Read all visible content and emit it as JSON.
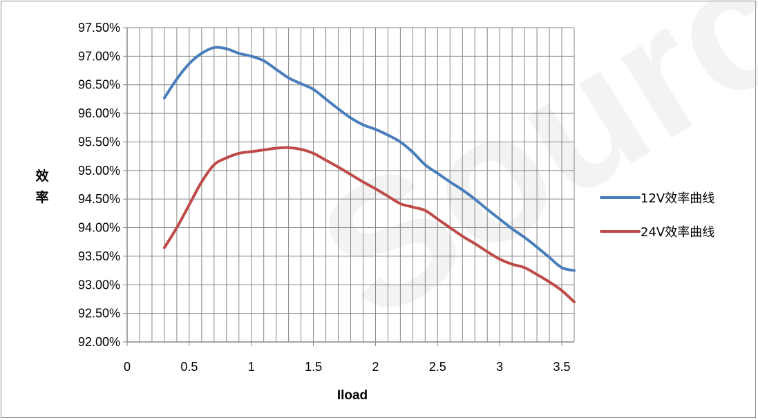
{
  "chart_data": {
    "type": "line",
    "title": "",
    "xlabel": "Iload",
    "ylabel": "效率",
    "xlim": [
      0,
      3.6
    ],
    "ylim": [
      92.0,
      97.5
    ],
    "x_ticks": [
      "0",
      "0.5",
      "1",
      "1.5",
      "2",
      "2.5",
      "3",
      "3.5"
    ],
    "y_ticks": [
      "92.00%",
      "92.50%",
      "93.00%",
      "93.50%",
      "94.00%",
      "94.50%",
      "95.00%",
      "95.50%",
      "96.00%",
      "96.50%",
      "97.00%",
      "97.50%"
    ],
    "grid": true,
    "legend_position": "right",
    "series": [
      {
        "name": "12V效率曲线",
        "color": "#4a7ebb",
        "x": [
          0.3,
          0.4,
          0.5,
          0.6,
          0.7,
          0.8,
          0.9,
          1.0,
          1.1,
          1.2,
          1.3,
          1.4,
          1.5,
          1.6,
          1.7,
          1.8,
          1.9,
          2.0,
          2.1,
          2.2,
          2.3,
          2.4,
          2.5,
          2.6,
          2.7,
          2.8,
          2.9,
          3.0,
          3.1,
          3.2,
          3.3,
          3.4,
          3.5,
          3.6
        ],
        "values": [
          96.27,
          96.6,
          96.87,
          97.05,
          97.15,
          97.13,
          97.05,
          97.0,
          96.92,
          96.77,
          96.62,
          96.52,
          96.42,
          96.25,
          96.08,
          95.92,
          95.8,
          95.72,
          95.62,
          95.5,
          95.32,
          95.1,
          94.95,
          94.8,
          94.66,
          94.5,
          94.32,
          94.15,
          93.98,
          93.83,
          93.66,
          93.48,
          93.3,
          93.25
        ]
      },
      {
        "name": "24V效率曲线",
        "color": "#be4b48",
        "x": [
          0.3,
          0.4,
          0.5,
          0.6,
          0.7,
          0.8,
          0.9,
          1.0,
          1.1,
          1.2,
          1.3,
          1.4,
          1.5,
          1.6,
          1.7,
          1.8,
          1.9,
          2.0,
          2.1,
          2.2,
          2.3,
          2.4,
          2.5,
          2.6,
          2.7,
          2.8,
          2.9,
          3.0,
          3.1,
          3.2,
          3.3,
          3.4,
          3.5,
          3.6
        ],
        "values": [
          93.65,
          94.0,
          94.4,
          94.8,
          95.1,
          95.22,
          95.3,
          95.33,
          95.36,
          95.39,
          95.4,
          95.37,
          95.3,
          95.18,
          95.06,
          94.93,
          94.8,
          94.68,
          94.55,
          94.42,
          94.36,
          94.3,
          94.15,
          94.0,
          93.85,
          93.72,
          93.58,
          93.45,
          93.36,
          93.3,
          93.18,
          93.05,
          92.9,
          92.7
        ]
      }
    ]
  },
  "colors": {
    "grid": "#868686",
    "axis": "#868686",
    "frame": "#8c8c8c"
  }
}
